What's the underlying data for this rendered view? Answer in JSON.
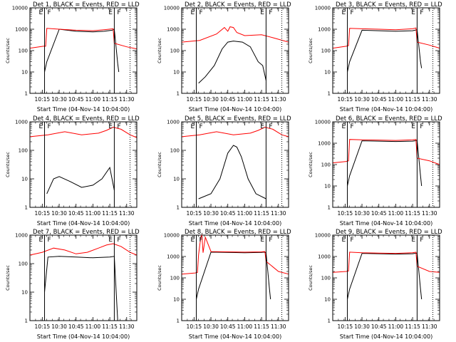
{
  "figure": {
    "title_suffix": ", BLACK = Events, RED = LLD",
    "xlabel": "Start Time (04-Nov-14 10:04:00)",
    "ylabel": "Counts/sec",
    "x_ticks": [
      "10:15",
      "10:30",
      "10:45",
      "11:00",
      "11:15",
      "11:30"
    ],
    "y_ticks": [
      "1",
      "10",
      "100",
      "1000",
      "10000"
    ],
    "marker_labels": [
      "E",
      "F",
      "E",
      "F"
    ],
    "colors": {
      "events": "#000000",
      "lld": "#ff0000",
      "axes": "#000000"
    }
  },
  "chart_data": [
    {
      "type": "line",
      "title": "Det 1",
      "yscale": "log",
      "ylim": [
        1,
        10000
      ],
      "x_range": [
        "10:04",
        "11:39"
      ],
      "markers": {
        "solid": [
          "10:17",
          "11:19"
        ],
        "dotted": [
          "11:33"
        ]
      },
      "series": [
        {
          "name": "BLACK = Events",
          "x": [
            "10:17",
            "10:19",
            "10:30",
            "10:45",
            "11:00",
            "11:10",
            "11:17",
            "11:19",
            "11:22",
            "11:23"
          ],
          "y": [
            10,
            30,
            1000,
            800,
            750,
            800,
            900,
            1000,
            25,
            10
          ]
        },
        {
          "name": "RED = LLD",
          "x": [
            "10:04",
            "10:16",
            "10:18",
            "10:19",
            "10:30",
            "10:45",
            "11:00",
            "11:10",
            "11:18",
            "11:19",
            "11:30",
            "11:39"
          ],
          "y": [
            130,
            160,
            160,
            1100,
            1000,
            900,
            850,
            950,
            1050,
            220,
            150,
            120
          ]
        }
      ]
    },
    {
      "type": "line",
      "title": "Det 2",
      "yscale": "log",
      "ylim": [
        1,
        10000
      ],
      "x_range": [
        "10:04",
        "11:39"
      ],
      "markers": {
        "solid": [
          "10:17",
          "11:19"
        ],
        "dotted": [
          "11:33"
        ]
      },
      "series": [
        {
          "name": "BLACK = Events",
          "x": [
            "10:19",
            "10:25",
            "10:33",
            "10:40",
            "10:45",
            "10:50",
            "10:58",
            "11:05",
            "11:12",
            "11:16",
            "11:19"
          ],
          "y": [
            3,
            6,
            20,
            120,
            250,
            280,
            250,
            150,
            30,
            20,
            4
          ]
        },
        {
          "name": "RED = LLD",
          "x": [
            "10:04",
            "10:20",
            "10:35",
            "10:42",
            "10:45",
            "10:47",
            "10:50",
            "10:53",
            "11:00",
            "11:15",
            "11:25",
            "11:39"
          ],
          "y": [
            250,
            300,
            600,
            1200,
            800,
            1300,
            1200,
            700,
            500,
            550,
            400,
            250
          ]
        }
      ]
    },
    {
      "type": "line",
      "title": "Det 3",
      "yscale": "log",
      "ylim": [
        1,
        10000
      ],
      "x_range": [
        "10:04",
        "11:39"
      ],
      "markers": {
        "solid": [
          "10:17",
          "11:19"
        ],
        "dotted": [
          "11:33"
        ]
      },
      "series": [
        {
          "name": "BLACK = Events",
          "x": [
            "10:17",
            "10:19",
            "10:30",
            "10:45",
            "11:00",
            "11:15",
            "11:17",
            "11:19",
            "11:22",
            "11:23"
          ],
          "y": [
            10,
            30,
            900,
            850,
            800,
            850,
            900,
            950,
            30,
            15
          ]
        },
        {
          "name": "RED = LLD",
          "x": [
            "10:04",
            "10:16",
            "10:18",
            "10:19",
            "10:30",
            "10:45",
            "11:00",
            "11:15",
            "11:18",
            "11:19",
            "11:30",
            "11:39"
          ],
          "y": [
            130,
            160,
            170,
            1100,
            1050,
            1000,
            950,
            1050,
            1150,
            250,
            180,
            130
          ]
        }
      ]
    },
    {
      "type": "line",
      "title": "Det 4",
      "yscale": "log",
      "ylim": [
        1,
        1000
      ],
      "x_range": [
        "10:04",
        "11:39"
      ],
      "markers": {
        "solid": [
          "10:17",
          "11:19"
        ],
        "dotted": [
          "11:33"
        ]
      },
      "series": [
        {
          "name": "BLACK = Events",
          "x": [
            "10:19",
            "10:25",
            "10:30",
            "10:40",
            "10:50",
            "11:00",
            "11:08",
            "11:15",
            "11:19"
          ],
          "y": [
            3,
            10,
            12,
            8,
            5,
            6,
            10,
            25,
            4
          ]
        },
        {
          "name": "RED = LLD",
          "x": [
            "10:04",
            "10:20",
            "10:35",
            "10:50",
            "11:05",
            "11:12",
            "11:18",
            "11:25",
            "11:33",
            "11:39"
          ],
          "y": [
            300,
            350,
            450,
            350,
            400,
            500,
            650,
            550,
            350,
            280
          ]
        }
      ]
    },
    {
      "type": "line",
      "title": "Det 5",
      "yscale": "log",
      "ylim": [
        1,
        1000
      ],
      "x_range": [
        "10:04",
        "11:39"
      ],
      "markers": {
        "solid": [
          "10:17",
          "11:19"
        ],
        "dotted": [
          "11:33"
        ]
      },
      "series": [
        {
          "name": "BLACK = Events",
          "x": [
            "10:19",
            "10:30",
            "10:38",
            "10:45",
            "10:50",
            "10:53",
            "10:57",
            "11:03",
            "11:10",
            "11:19"
          ],
          "y": [
            2,
            3,
            10,
            80,
            150,
            130,
            60,
            10,
            3,
            2
          ]
        },
        {
          "name": "RED = LLD",
          "x": [
            "10:04",
            "10:20",
            "10:35",
            "10:50",
            "11:05",
            "11:12",
            "11:18",
            "11:25",
            "11:33",
            "11:39"
          ],
          "y": [
            300,
            350,
            450,
            350,
            400,
            500,
            650,
            550,
            350,
            300
          ]
        }
      ]
    },
    {
      "type": "line",
      "title": "Det 6",
      "yscale": "log",
      "ylim": [
        1,
        10000
      ],
      "x_range": [
        "10:04",
        "11:39"
      ],
      "markers": {
        "solid": [
          "10:17",
          "11:19"
        ],
        "dotted": [
          "11:33"
        ]
      },
      "series": [
        {
          "name": "BLACK = Events",
          "x": [
            "10:17",
            "10:19",
            "10:30",
            "10:45",
            "11:00",
            "11:15",
            "11:17",
            "11:19",
            "11:22",
            "11:23"
          ],
          "y": [
            10,
            30,
            1300,
            1250,
            1200,
            1250,
            1300,
            1350,
            30,
            10
          ]
        },
        {
          "name": "RED = LLD",
          "x": [
            "10:04",
            "10:16",
            "10:18",
            "10:19",
            "10:30",
            "10:45",
            "11:00",
            "11:15",
            "11:18",
            "11:19",
            "11:30",
            "11:39"
          ],
          "y": [
            120,
            140,
            150,
            1500,
            1450,
            1400,
            1350,
            1450,
            1500,
            200,
            150,
            100
          ]
        }
      ]
    },
    {
      "type": "line",
      "title": "Det 7",
      "yscale": "log",
      "ylim": [
        1,
        1000
      ],
      "x_range": [
        "10:04",
        "11:39"
      ],
      "markers": {
        "solid": [
          "10:17",
          "11:19"
        ],
        "dotted": [
          "11:33"
        ]
      },
      "series": [
        {
          "name": "BLACK = Events",
          "x": [
            "10:17",
            "10:20",
            "10:30",
            "10:45",
            "11:00",
            "11:15",
            "11:19",
            "11:22"
          ],
          "y": [
            10,
            170,
            180,
            170,
            160,
            170,
            180,
            1
          ]
        },
        {
          "name": "RED = LLD",
          "x": [
            "10:04",
            "10:15",
            "10:25",
            "10:35",
            "10:45",
            "10:55",
            "11:05",
            "11:12",
            "11:18",
            "11:25",
            "11:33",
            "11:39"
          ],
          "y": [
            200,
            250,
            350,
            300,
            220,
            250,
            350,
            450,
            500,
            400,
            250,
            200
          ]
        }
      ]
    },
    {
      "type": "line",
      "title": "Det 8",
      "yscale": "log",
      "ylim": [
        1,
        10000
      ],
      "x_range": [
        "10:04",
        "11:39"
      ],
      "markers": {
        "solid": [
          "10:17",
          "11:19"
        ],
        "dotted": [
          "11:33"
        ]
      },
      "series": [
        {
          "name": "BLACK = Events",
          "x": [
            "10:17",
            "10:19",
            "10:30",
            "10:45",
            "11:00",
            "11:15",
            "11:17",
            "11:19",
            "11:22",
            "11:23"
          ],
          "y": [
            10,
            30,
            1600,
            1550,
            1500,
            1550,
            1600,
            1500,
            30,
            10
          ]
        },
        {
          "name": "RED = LLD",
          "x": [
            "10:04",
            "10:16",
            "10:18",
            "10:19",
            "10:21",
            "10:22",
            "10:23",
            "10:25",
            "10:30",
            "10:45",
            "11:00",
            "11:15",
            "11:18",
            "11:19",
            "11:30",
            "11:39"
          ],
          "y": [
            150,
            170,
            180,
            1200,
            8000,
            10000,
            1500,
            8000,
            1700,
            1650,
            1600,
            1650,
            1700,
            600,
            200,
            150
          ]
        }
      ]
    },
    {
      "type": "line",
      "title": "Det 9",
      "yscale": "log",
      "ylim": [
        1,
        10000
      ],
      "x_range": [
        "10:04",
        "11:39"
      ],
      "markers": {
        "solid": [
          "10:17",
          "11:19"
        ],
        "dotted": [
          "11:33"
        ]
      },
      "series": [
        {
          "name": "BLACK = Events",
          "x": [
            "10:17",
            "10:19",
            "10:30",
            "10:45",
            "11:00",
            "11:15",
            "11:17",
            "11:19",
            "11:22",
            "11:23"
          ],
          "y": [
            10,
            30,
            1400,
            1350,
            1300,
            1350,
            1400,
            1450,
            30,
            10
          ]
        },
        {
          "name": "RED = LLD",
          "x": [
            "10:04",
            "10:16",
            "10:18",
            "10:19",
            "10:30",
            "10:45",
            "11:00",
            "11:15",
            "11:18",
            "11:19",
            "11:30",
            "11:39"
          ],
          "y": [
            180,
            200,
            210,
            1600,
            1500,
            1450,
            1400,
            1500,
            1600,
            350,
            200,
            180
          ]
        }
      ]
    }
  ]
}
